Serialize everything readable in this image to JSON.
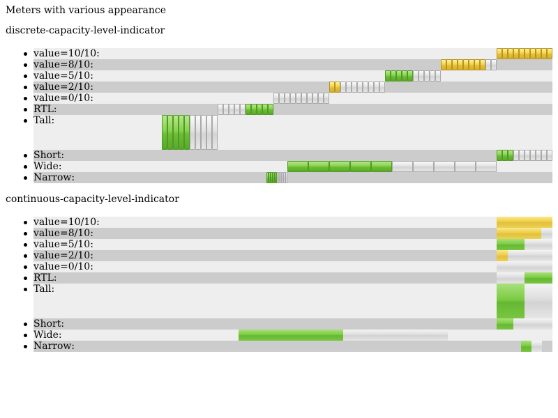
{
  "page": {
    "title": "Meters with various appearance"
  },
  "sections": [
    {
      "heading": "discrete-capacity-level-indicator",
      "appearance": "discrete",
      "rows": [
        {
          "label": "value=10/10:",
          "value": 10,
          "max": 10,
          "color": "yellow",
          "variant": "normal"
        },
        {
          "label": "value=8/10:",
          "value": 8,
          "max": 10,
          "color": "yellow",
          "variant": "normal"
        },
        {
          "label": "value=5/10:",
          "value": 5,
          "max": 10,
          "color": "green",
          "variant": "normal"
        },
        {
          "label": "value=2/10:",
          "value": 2,
          "max": 10,
          "color": "yellow",
          "variant": "normal"
        },
        {
          "label": "value=0/10:",
          "value": 0,
          "max": 10,
          "color": "green",
          "variant": "normal"
        },
        {
          "label": "RTL:",
          "value": 5,
          "max": 10,
          "color": "green",
          "variant": "rtl"
        },
        {
          "label": "Tall:",
          "value": 5,
          "max": 10,
          "color": "green",
          "variant": "tall"
        },
        {
          "label": "Short:",
          "value": 3,
          "max": 10,
          "color": "green",
          "variant": "short"
        },
        {
          "label": "Wide:",
          "value": 5,
          "max": 10,
          "color": "green",
          "variant": "wide"
        },
        {
          "label": "Narrow:",
          "value": 5,
          "max": 10,
          "color": "green",
          "variant": "narrow"
        }
      ]
    },
    {
      "heading": "continuous-capacity-level-indicator",
      "appearance": "continuous",
      "rows": [
        {
          "label": "value=10/10:",
          "value": 10,
          "max": 10,
          "color": "yellow",
          "variant": "normal"
        },
        {
          "label": "value=8/10:",
          "value": 8,
          "max": 10,
          "color": "yellow",
          "variant": "normal"
        },
        {
          "label": "value=5/10:",
          "value": 5,
          "max": 10,
          "color": "green",
          "variant": "normal"
        },
        {
          "label": "value=2/10:",
          "value": 2,
          "max": 10,
          "color": "yellow",
          "variant": "normal"
        },
        {
          "label": "value=0/10:",
          "value": 0,
          "max": 10,
          "color": "green",
          "variant": "normal"
        },
        {
          "label": "RTL:",
          "value": 5,
          "max": 10,
          "color": "green",
          "variant": "rtl"
        },
        {
          "label": "Tall:",
          "value": 5,
          "max": 10,
          "color": "green",
          "variant": "tall"
        },
        {
          "label": "Short:",
          "value": 3,
          "max": 10,
          "color": "green",
          "variant": "short"
        },
        {
          "label": "Wide:",
          "value": 5,
          "max": 10,
          "color": "green",
          "variant": "wide"
        },
        {
          "label": "Narrow:",
          "value": 5,
          "max": 10,
          "color": "green",
          "variant": "narrow"
        }
      ]
    }
  ],
  "colors": {
    "row_light": "#eeeeee",
    "row_dark": "#cccccc",
    "meter_green": "#7ccc44",
    "meter_yellow": "#eccd47",
    "meter_empty": "#dddddd"
  }
}
